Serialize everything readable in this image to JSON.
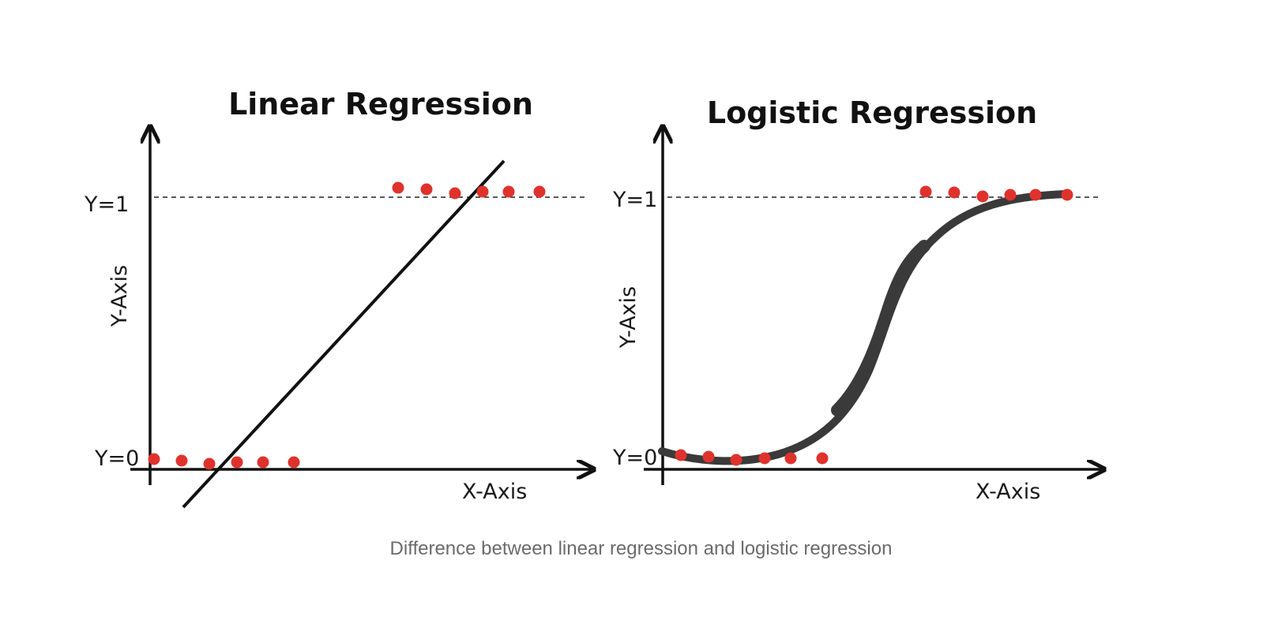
{
  "colors": {
    "point": "#e0322c",
    "ink": "#111111",
    "curve": "#3a3a3a",
    "caption": "#6b6b6b"
  },
  "panels": [
    {
      "title": "Linear Regression",
      "ylabel": "Y-Axis",
      "xlabel": "X-Axis",
      "y0_label": "Y=0",
      "y1_label": "Y=1",
      "fit": "straight line",
      "points_class0": 6,
      "points_class1": 6
    },
    {
      "title": "Logistic Regression",
      "ylabel": "Y-Axis",
      "xlabel": "X-Axis",
      "y0_label": "Y=0",
      "y1_label": "Y=1",
      "fit": "s-shaped sigmoid curve",
      "points_class0": 6,
      "points_class1": 6
    }
  ],
  "caption": "Difference between linear regression and logistic regression"
}
